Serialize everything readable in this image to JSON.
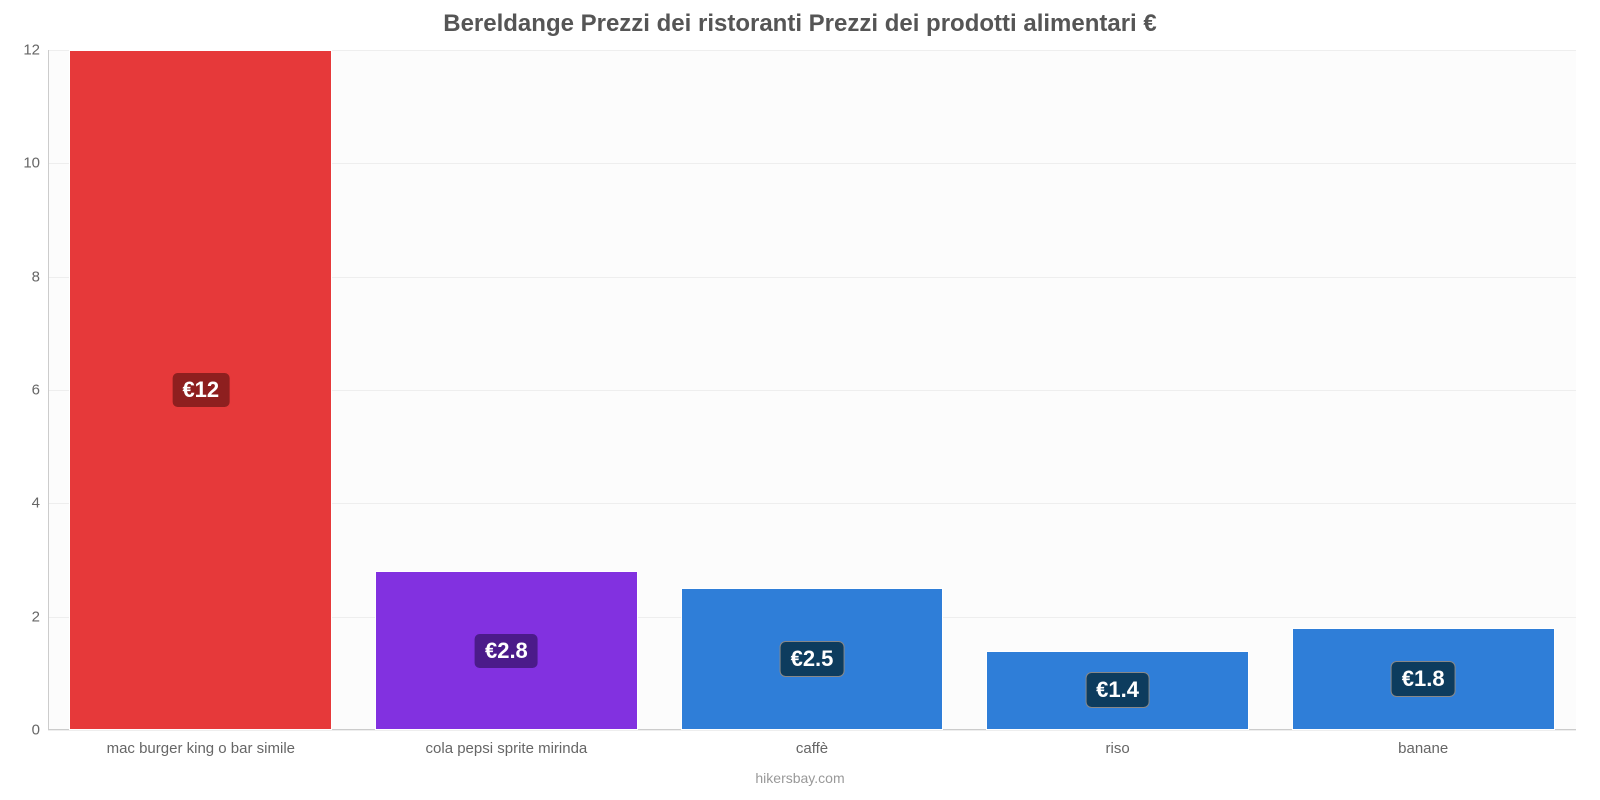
{
  "chart": {
    "type": "bar",
    "title": "Bereldange Prezzi dei ristoranti Prezzi dei prodotti alimentari €",
    "title_fontsize": 24,
    "title_color": "#555555",
    "background_color": "#ffffff",
    "plot_background": "#fcfcfc",
    "grid_color": "#eeeeee",
    "axis_color": "#cccccc",
    "tick_label_color": "#666666",
    "tick_fontsize": 15,
    "ylim": [
      0,
      12
    ],
    "ytick_step": 2,
    "bar_width_ratio": 0.86,
    "categories": [
      "mac burger king o bar simile",
      "cola pepsi sprite mirinda",
      "caffè",
      "riso",
      "banane"
    ],
    "values": [
      12,
      2.8,
      2.5,
      1.4,
      1.8
    ],
    "value_labels": [
      "€12",
      "€2.8",
      "€2.5",
      "€1.4",
      "€1.8"
    ],
    "bar_colors": [
      "#e6393a",
      "#8231e0",
      "#2f7ed8",
      "#2f7ed8",
      "#2f7ed8"
    ],
    "label_bg_colors": [
      "#8e1f1f",
      "#4b1b8a",
      "#0d3c5e",
      "#0d3c5e",
      "#0d3c5e"
    ],
    "label_stroke_colors": [
      "#e6393a",
      "#8231e0",
      "#888888",
      "#888888",
      "#888888"
    ],
    "label_fontsize": 22,
    "watermark": "hikersbay.com",
    "watermark_color": "#999999",
    "watermark_fontsize": 14
  }
}
